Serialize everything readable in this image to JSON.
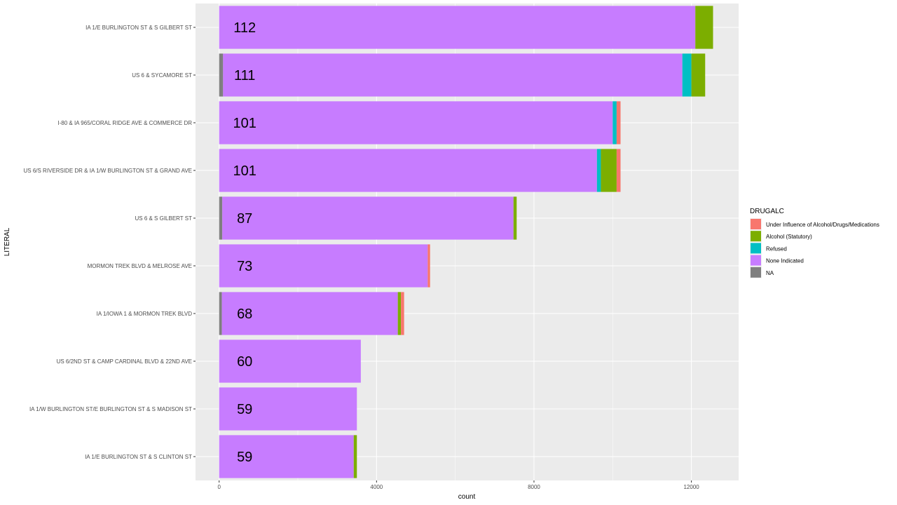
{
  "chart_data": {
    "type": "bar",
    "orientation": "horizontal",
    "stacked": true,
    "xlabel": "count",
    "ylabel": "LITERAL",
    "xlim": [
      -600,
      13200
    ],
    "xticks": [
      0,
      4000,
      8000,
      12000
    ],
    "grid": true,
    "legend_title": "DRUGALC",
    "legend_position": "right",
    "categories": [
      "IA 1/E BURLINGTON ST & S GILBERT ST",
      "US 6 & SYCAMORE ST",
      "I-80 & IA 965/CORAL RIDGE AVE & COMMERCE DR",
      "US 6/S RIVERSIDE DR & IA 1/W BURLINGTON ST & GRAND AVE",
      "US 6 & S GILBERT ST",
      "MORMON TREK BLVD & MELROSE AVE",
      "IA 1/IOWA 1 & MORMON TREK BLVD",
      "US 6/2ND ST & CAMP CARDINAL BLVD & 22ND AVE",
      "IA 1/W BURLINGTON ST/E BURLINGTON ST & S MADISON ST",
      "IA 1/E BURLINGTON ST & S CLINTON ST"
    ],
    "bar_labels": [
      "112",
      "111",
      "101",
      "101",
      "87",
      "73",
      "68",
      "60",
      "59",
      "59"
    ],
    "stack_order": [
      "NA",
      "None Indicated",
      "Refused",
      "Alcohol (Statutory)",
      "Under Influence of Alcohol/Drugs/Medications"
    ],
    "series": [
      {
        "name": "Under Influence of Alcohol/Drugs/Medications",
        "color": "#F8766D",
        "values": [
          0,
          0,
          100,
          100,
          0,
          60,
          80,
          0,
          0,
          0
        ]
      },
      {
        "name": "Alcohol (Statutory)",
        "color": "#7CAE00",
        "values": [
          450,
          350,
          0,
          400,
          80,
          0,
          80,
          0,
          0,
          80
        ]
      },
      {
        "name": "Refused",
        "color": "#00BFC4",
        "values": [
          0,
          230,
          100,
          100,
          0,
          0,
          0,
          0,
          0,
          0
        ]
      },
      {
        "name": "None Indicated",
        "color": "#C77CFF",
        "values": [
          12100,
          11670,
          10000,
          9600,
          7400,
          5300,
          4470,
          3600,
          3500,
          3420
        ]
      },
      {
        "name": "NA",
        "color": "#7F7F7F",
        "values": [
          0,
          100,
          0,
          0,
          80,
          0,
          70,
          0,
          0,
          0
        ]
      }
    ]
  }
}
